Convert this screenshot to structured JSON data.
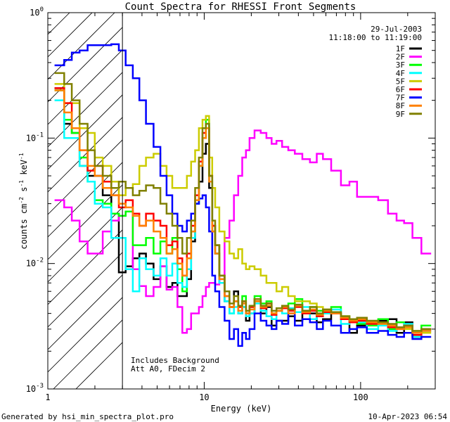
{
  "chart_data": {
    "type": "line",
    "title": "Count Spectra for RHESSI Front Segments",
    "xlabel": "Energy (keV)",
    "ylabel_parts": [
      "counts cm",
      "-2",
      " s",
      "-1",
      " keV",
      "-1"
    ],
    "xscale": "log",
    "yscale": "log",
    "xlim": [
      1,
      300
    ],
    "ylim": [
      0.001,
      1
    ],
    "x_tick_labels": [
      {
        "value": 1,
        "label": "1"
      },
      {
        "value": 10,
        "label": "10"
      },
      {
        "value": 100,
        "label": "100"
      }
    ],
    "y_tick_labels": [
      {
        "value": 0.001,
        "base": "10",
        "exp": "-3"
      },
      {
        "value": 0.01,
        "base": "10",
        "exp": "-2"
      },
      {
        "value": 0.1,
        "base": "10",
        "exp": "-1"
      },
      {
        "value": 1,
        "base": "10",
        "exp": "0"
      }
    ],
    "date": "29-Jul-2003",
    "time_range": "11:18:00 to 11:19:00",
    "annotation_lines": [
      "Includes Background",
      "Att A0, FDecim 2"
    ],
    "hatched_region": [
      1,
      3
    ],
    "series": [
      {
        "name": "1F",
        "color": "#000000",
        "x": [
          1.2,
          1.35,
          1.5,
          1.7,
          1.9,
          2.1,
          2.4,
          2.7,
          3.0,
          3.3,
          3.7,
          4.0,
          4.5,
          5.0,
          5.5,
          6.0,
          6.5,
          7.0,
          7.5,
          8.0,
          8.5,
          9.0,
          9.5,
          10.0,
          10.5,
          11.0,
          11.5,
          12.0,
          13.0,
          14.0,
          15.0,
          16.0,
          17.0,
          18.0,
          19.0,
          20.0,
          22.0,
          24.0,
          26.0,
          28.0,
          30.0,
          33.0,
          36.0,
          40.0,
          45.0,
          50.0,
          55.0,
          60.0,
          70.0,
          80.0,
          90.0,
          100.0,
          120.0,
          140.0,
          160.0,
          180.0,
          200.0,
          230.0,
          260.0
        ],
        "y": [
          0.25,
          0.13,
          0.11,
          0.06,
          0.05,
          0.05,
          0.035,
          0.025,
          0.0085,
          0.0095,
          0.011,
          0.012,
          0.01,
          0.0075,
          0.0095,
          0.0065,
          0.007,
          0.0055,
          0.0055,
          0.0075,
          0.015,
          0.03,
          0.045,
          0.075,
          0.09,
          0.04,
          0.018,
          0.012,
          0.007,
          0.005,
          0.0045,
          0.006,
          0.004,
          0.0045,
          0.0035,
          0.004,
          0.005,
          0.004,
          0.0045,
          0.0032,
          0.0035,
          0.0035,
          0.0038,
          0.0035,
          0.0042,
          0.004,
          0.0034,
          0.0036,
          0.004,
          0.0036,
          0.0028,
          0.0032,
          0.0034,
          0.0035,
          0.0036,
          0.0028,
          0.0034,
          0.0026,
          0.003
        ]
      },
      {
        "name": "2F",
        "color": "#ff00ff",
        "x": [
          1.2,
          1.35,
          1.5,
          1.7,
          1.9,
          2.1,
          2.4,
          2.7,
          3.0,
          3.3,
          3.7,
          4.0,
          4.5,
          5.0,
          5.5,
          6.0,
          6.5,
          7.0,
          7.5,
          8.0,
          8.5,
          9.0,
          9.5,
          10.0,
          10.5,
          11.0,
          11.5,
          12.0,
          13.0,
          14.0,
          15.0,
          16.0,
          17.0,
          18.0,
          19.0,
          20.0,
          22.0,
          24.0,
          26.0,
          28.0,
          30.0,
          33.0,
          36.0,
          40.0,
          45.0,
          50.0,
          55.0,
          60.0,
          70.0,
          80.0,
          90.0,
          100.0,
          120.0,
          140.0,
          160.0,
          180.0,
          200.0,
          230.0,
          260.0
        ],
        "y": [
          0.032,
          0.028,
          0.022,
          0.015,
          0.012,
          0.012,
          0.018,
          0.022,
          0.024,
          0.026,
          0.009,
          0.0066,
          0.0055,
          0.0065,
          0.0095,
          0.0062,
          0.0065,
          0.0045,
          0.0028,
          0.003,
          0.004,
          0.004,
          0.0045,
          0.0055,
          0.0065,
          0.007,
          0.007,
          0.0068,
          0.0075,
          0.016,
          0.022,
          0.035,
          0.05,
          0.07,
          0.08,
          0.1,
          0.115,
          0.11,
          0.1,
          0.09,
          0.095,
          0.085,
          0.08,
          0.075,
          0.068,
          0.064,
          0.075,
          0.068,
          0.055,
          0.042,
          0.045,
          0.034,
          0.034,
          0.032,
          0.025,
          0.022,
          0.021,
          0.016,
          0.012
        ]
      },
      {
        "name": "3F",
        "color": "#00ff00",
        "x": [
          1.2,
          1.35,
          1.5,
          1.7,
          1.9,
          2.1,
          2.4,
          2.7,
          3.0,
          3.3,
          3.7,
          4.0,
          4.5,
          5.0,
          5.5,
          6.0,
          6.5,
          7.0,
          7.5,
          8.0,
          8.5,
          9.0,
          9.5,
          10.0,
          10.5,
          11.0,
          11.5,
          12.0,
          13.0,
          14.0,
          15.0,
          16.0,
          17.0,
          18.0,
          19.0,
          20.0,
          22.0,
          24.0,
          26.0,
          28.0,
          30.0,
          33.0,
          36.0,
          40.0,
          45.0,
          50.0,
          55.0,
          60.0,
          70.0,
          80.0,
          90.0,
          100.0,
          120.0,
          140.0,
          160.0,
          180.0,
          200.0,
          230.0,
          260.0
        ],
        "y": [
          0.24,
          0.14,
          0.11,
          0.07,
          0.045,
          0.032,
          0.03,
          0.025,
          0.024,
          0.026,
          0.014,
          0.014,
          0.016,
          0.012,
          0.015,
          0.012,
          0.016,
          0.009,
          0.006,
          0.011,
          0.018,
          0.03,
          0.06,
          0.1,
          0.14,
          0.05,
          0.02,
          0.014,
          0.008,
          0.006,
          0.004,
          0.005,
          0.0045,
          0.0055,
          0.004,
          0.0045,
          0.0055,
          0.0048,
          0.005,
          0.004,
          0.0042,
          0.0045,
          0.0048,
          0.0052,
          0.004,
          0.0045,
          0.0042,
          0.004,
          0.0045,
          0.0038,
          0.0035,
          0.0033,
          0.0032,
          0.0036,
          0.003,
          0.0034,
          0.0031,
          0.0028,
          0.0032
        ]
      },
      {
        "name": "4F",
        "color": "#00ffff",
        "x": [
          1.2,
          1.35,
          1.5,
          1.7,
          1.9,
          2.1,
          2.4,
          2.7,
          3.0,
          3.3,
          3.7,
          4.0,
          4.5,
          5.0,
          5.5,
          6.0,
          6.5,
          7.0,
          7.5,
          8.0,
          8.5,
          9.0,
          9.5,
          10.0,
          10.5,
          11.0,
          11.5,
          12.0,
          13.0,
          14.0,
          15.0,
          16.0,
          17.0,
          18.0,
          19.0,
          20.0,
          22.0,
          24.0,
          26.0,
          28.0,
          30.0,
          33.0,
          36.0,
          40.0,
          45.0,
          50.0,
          55.0,
          60.0,
          70.0,
          80.0,
          90.0,
          100.0,
          120.0,
          140.0,
          160.0,
          180.0,
          200.0,
          230.0,
          260.0
        ],
        "y": [
          0.2,
          0.1,
          0.1,
          0.06,
          0.045,
          0.03,
          0.028,
          0.016,
          0.016,
          0.009,
          0.006,
          0.011,
          0.009,
          0.008,
          0.011,
          0.008,
          0.01,
          0.007,
          0.0065,
          0.009,
          0.016,
          0.03,
          0.06,
          0.1,
          0.13,
          0.045,
          0.018,
          0.012,
          0.007,
          0.005,
          0.004,
          0.0045,
          0.004,
          0.0045,
          0.0038,
          0.004,
          0.0048,
          0.0042,
          0.0038,
          0.0036,
          0.0042,
          0.004,
          0.0044,
          0.0041,
          0.0045,
          0.0036,
          0.0038,
          0.004,
          0.0043,
          0.0033,
          0.0035,
          0.0034,
          0.003,
          0.0032,
          0.0029,
          0.003,
          0.0033,
          0.0026,
          0.0029
        ]
      },
      {
        "name": "5F",
        "color": "#cccc00",
        "x": [
          1.2,
          1.35,
          1.5,
          1.7,
          1.9,
          2.1,
          2.4,
          2.7,
          3.0,
          3.3,
          3.7,
          4.0,
          4.5,
          5.0,
          5.5,
          6.0,
          6.5,
          7.0,
          7.5,
          8.0,
          8.5,
          9.0,
          9.5,
          10.0,
          10.5,
          11.0,
          11.5,
          12.0,
          13.0,
          14.0,
          15.0,
          16.0,
          17.0,
          18.0,
          19.0,
          20.0,
          22.0,
          24.0,
          26.0,
          28.0,
          30.0,
          33.0,
          36.0,
          40.0,
          45.0,
          50.0,
          55.0,
          60.0,
          70.0,
          80.0,
          90.0,
          100.0,
          120.0,
          140.0,
          160.0,
          180.0,
          200.0,
          230.0,
          260.0
        ],
        "y": [
          0.27,
          0.19,
          0.19,
          0.12,
          0.11,
          0.07,
          0.06,
          0.045,
          0.035,
          0.04,
          0.043,
          0.06,
          0.07,
          0.075,
          0.06,
          0.05,
          0.04,
          0.04,
          0.04,
          0.05,
          0.065,
          0.08,
          0.12,
          0.14,
          0.15,
          0.07,
          0.04,
          0.028,
          0.018,
          0.015,
          0.012,
          0.011,
          0.013,
          0.01,
          0.009,
          0.0095,
          0.009,
          0.008,
          0.007,
          0.007,
          0.006,
          0.0065,
          0.0055,
          0.005,
          0.005,
          0.0048,
          0.0045,
          0.0043,
          0.004,
          0.0038,
          0.0036,
          0.0035,
          0.0034,
          0.0033,
          0.0032,
          0.0031,
          0.003,
          0.0029,
          0.0028
        ]
      },
      {
        "name": "6F",
        "color": "#ff0000",
        "x": [
          1.2,
          1.35,
          1.5,
          1.7,
          1.9,
          2.1,
          2.4,
          2.7,
          3.0,
          3.3,
          3.7,
          4.0,
          4.5,
          5.0,
          5.5,
          6.0,
          6.5,
          7.0,
          7.5,
          8.0,
          8.5,
          9.0,
          9.5,
          10.0,
          10.5,
          11.0,
          11.5,
          12.0,
          13.0,
          14.0,
          15.0,
          16.0,
          17.0,
          18.0,
          19.0,
          20.0,
          22.0,
          24.0,
          26.0,
          28.0,
          30.0,
          33.0,
          36.0,
          40.0,
          45.0,
          50.0,
          55.0,
          60.0,
          70.0,
          80.0,
          90.0,
          100.0,
          120.0,
          140.0,
          160.0,
          180.0,
          200.0,
          230.0,
          260.0
        ],
        "y": [
          0.25,
          0.19,
          0.12,
          0.08,
          0.055,
          0.06,
          0.045,
          0.035,
          0.028,
          0.032,
          0.025,
          0.02,
          0.025,
          0.022,
          0.02,
          0.014,
          0.015,
          0.011,
          0.008,
          0.012,
          0.02,
          0.035,
          0.065,
          0.11,
          0.12,
          0.05,
          0.02,
          0.014,
          0.008,
          0.0055,
          0.0045,
          0.005,
          0.0045,
          0.005,
          0.004,
          0.0045,
          0.0052,
          0.0044,
          0.0048,
          0.0039,
          0.0042,
          0.0044,
          0.0042,
          0.0045,
          0.004,
          0.0042,
          0.0038,
          0.0041,
          0.004,
          0.0036,
          0.0034,
          0.0035,
          0.0033,
          0.0034,
          0.0031,
          0.003,
          0.0032,
          0.0027,
          0.003
        ]
      },
      {
        "name": "7F",
        "color": "#0000ff",
        "x": [
          1.2,
          1.35,
          1.5,
          1.7,
          1.9,
          2.1,
          2.4,
          2.7,
          3.0,
          3.3,
          3.7,
          4.0,
          4.5,
          5.0,
          5.5,
          6.0,
          6.5,
          7.0,
          7.5,
          8.0,
          8.5,
          9.0,
          9.5,
          10.0,
          10.5,
          11.0,
          11.5,
          12.0,
          13.0,
          14.0,
          15.0,
          16.0,
          17.0,
          18.0,
          19.0,
          20.0,
          22.0,
          24.0,
          26.0,
          28.0,
          30.0,
          33.0,
          36.0,
          40.0,
          45.0,
          50.0,
          55.0,
          60.0,
          70.0,
          80.0,
          90.0,
          100.0,
          120.0,
          140.0,
          160.0,
          180.0,
          200.0,
          230.0,
          260.0
        ],
        "y": [
          0.38,
          0.42,
          0.48,
          0.5,
          0.55,
          0.55,
          0.55,
          0.56,
          0.5,
          0.38,
          0.3,
          0.2,
          0.13,
          0.085,
          0.05,
          0.035,
          0.025,
          0.02,
          0.018,
          0.022,
          0.025,
          0.03,
          0.033,
          0.035,
          0.028,
          0.018,
          0.008,
          0.006,
          0.0045,
          0.0035,
          0.0025,
          0.003,
          0.0022,
          0.0028,
          0.0025,
          0.003,
          0.004,
          0.0035,
          0.0032,
          0.003,
          0.0035,
          0.0033,
          0.004,
          0.0032,
          0.0036,
          0.0034,
          0.003,
          0.0035,
          0.0032,
          0.0028,
          0.003,
          0.0031,
          0.0028,
          0.0029,
          0.0027,
          0.0026,
          0.0028,
          0.0025,
          0.0026
        ]
      },
      {
        "name": "8F",
        "color": "#ff8000",
        "x": [
          1.2,
          1.35,
          1.5,
          1.7,
          1.9,
          2.1,
          2.4,
          2.7,
          3.0,
          3.3,
          3.7,
          4.0,
          4.5,
          5.0,
          5.5,
          6.0,
          6.5,
          7.0,
          7.5,
          8.0,
          8.5,
          9.0,
          9.5,
          10.0,
          10.5,
          11.0,
          11.5,
          12.0,
          13.0,
          14.0,
          15.0,
          16.0,
          17.0,
          18.0,
          19.0,
          20.0,
          22.0,
          24.0,
          26.0,
          28.0,
          30.0,
          33.0,
          36.0,
          40.0,
          45.0,
          50.0,
          55.0,
          60.0,
          70.0,
          80.0,
          90.0,
          100.0,
          120.0,
          140.0,
          160.0,
          180.0,
          200.0,
          230.0,
          260.0
        ],
        "y": [
          0.24,
          0.16,
          0.12,
          0.08,
          0.06,
          0.05,
          0.04,
          0.035,
          0.03,
          0.028,
          0.024,
          0.02,
          0.022,
          0.018,
          0.016,
          0.012,
          0.013,
          0.01,
          0.008,
          0.011,
          0.018,
          0.032,
          0.06,
          0.1,
          0.12,
          0.045,
          0.018,
          0.012,
          0.0075,
          0.0055,
          0.0045,
          0.005,
          0.0042,
          0.0048,
          0.004,
          0.0043,
          0.005,
          0.0045,
          0.0046,
          0.004,
          0.0042,
          0.0045,
          0.004,
          0.0046,
          0.0041,
          0.0043,
          0.0039,
          0.0042,
          0.004,
          0.0037,
          0.0035,
          0.0036,
          0.0034,
          0.0033,
          0.0032,
          0.003,
          0.0031,
          0.0028,
          0.0029
        ]
      },
      {
        "name": "9F",
        "color": "#808000",
        "x": [
          1.2,
          1.35,
          1.5,
          1.7,
          1.9,
          2.1,
          2.4,
          2.7,
          3.0,
          3.3,
          3.7,
          4.0,
          4.5,
          5.0,
          5.5,
          6.0,
          6.5,
          7.0,
          7.5,
          8.0,
          8.5,
          9.0,
          9.5,
          10.0,
          10.5,
          11.0,
          11.5,
          12.0,
          13.0,
          14.0,
          15.0,
          16.0,
          17.0,
          18.0,
          19.0,
          20.0,
          22.0,
          24.0,
          26.0,
          28.0,
          30.0,
          33.0,
          36.0,
          40.0,
          45.0,
          50.0,
          55.0,
          60.0,
          70.0,
          80.0,
          90.0,
          100.0,
          120.0,
          140.0,
          160.0,
          180.0,
          200.0,
          230.0,
          260.0
        ],
        "y": [
          0.33,
          0.27,
          0.2,
          0.13,
          0.08,
          0.06,
          0.05,
          0.04,
          0.045,
          0.04,
          0.035,
          0.038,
          0.042,
          0.04,
          0.03,
          0.025,
          0.02,
          0.016,
          0.012,
          0.016,
          0.022,
          0.04,
          0.07,
          0.12,
          0.13,
          0.05,
          0.022,
          0.014,
          0.008,
          0.006,
          0.0048,
          0.0055,
          0.0046,
          0.005,
          0.0042,
          0.0046,
          0.0052,
          0.0046,
          0.0048,
          0.0042,
          0.0044,
          0.0046,
          0.0043,
          0.0047,
          0.0042,
          0.0045,
          0.004,
          0.0043,
          0.0041,
          0.0038,
          0.0036,
          0.0037,
          0.0035,
          0.0034,
          0.0033,
          0.0031,
          0.0032,
          0.0029,
          0.003
        ]
      }
    ]
  },
  "footer": {
    "generated_by": "Generated by hsi_min_spectra_plot.pro",
    "timestamp": "10-Apr-2023 06:54"
  }
}
